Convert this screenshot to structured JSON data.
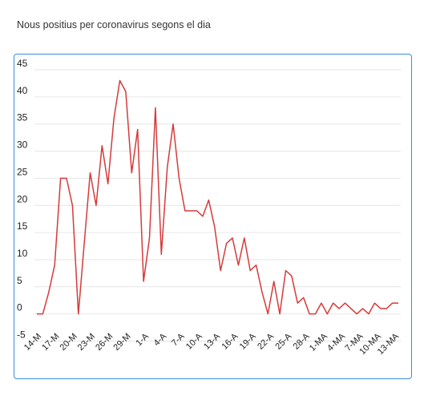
{
  "page_title": "Nous positius per coronavirus segons el dia",
  "colors": {
    "line": "#d63a3a",
    "frame": "#3a8fd9",
    "grid": "#e6e6e6"
  },
  "chart_data": {
    "type": "line",
    "title": "Nous positius per coronavirus segons el dia",
    "xlabel": "",
    "ylabel": "",
    "ylim": [
      -5,
      45
    ],
    "yticks": [
      45,
      40,
      35,
      30,
      25,
      20,
      15,
      10,
      5,
      0,
      -5
    ],
    "grid": true,
    "x_tick_labels": [
      "14-M",
      "17-M",
      "20-M",
      "23-M",
      "26-M",
      "29-M",
      "1-A",
      "4-A",
      "7-A",
      "10-A",
      "13-A",
      "16-A",
      "19-A",
      "22-A",
      "25-A",
      "28-A",
      "1-MA",
      "4-MA",
      "7-MA",
      "10-MA",
      "13-MA"
    ],
    "series": [
      {
        "values": [
          0,
          0,
          4,
          9,
          25,
          25,
          20,
          0,
          13,
          26,
          20,
          31,
          24,
          36,
          43,
          41,
          26,
          34,
          6,
          14,
          38,
          11,
          27,
          35,
          25,
          19,
          19,
          19,
          18,
          21,
          16,
          8,
          13,
          14,
          9,
          14,
          8,
          9,
          4,
          0,
          6,
          0,
          8,
          7,
          2,
          3,
          0,
          0,
          2,
          0,
          2,
          1,
          2,
          1,
          0,
          1,
          0,
          2,
          1,
          1,
          2,
          2
        ]
      }
    ]
  }
}
